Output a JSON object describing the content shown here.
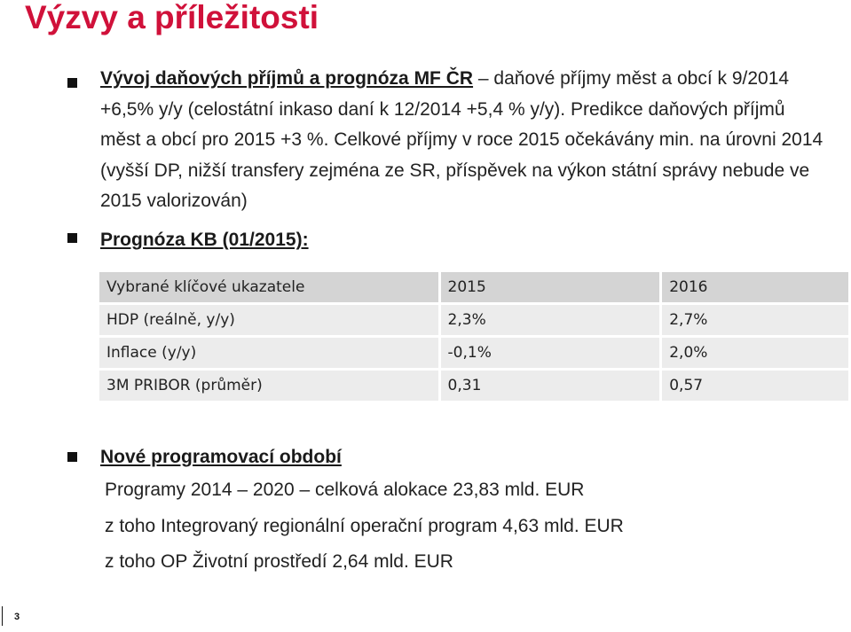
{
  "title": "Výzvy a příležitosti",
  "bullet1": {
    "heading": "Vývoj daňových příjmů a prognóza MF ČR",
    "text": " – daňové příjmy měst a obcí k 9/2014 +6,5% y/y (celostátní inkaso daní k 12/2014 +5,4 % y/y). Predikce daňových příjmů  měst a obcí pro 2015 +3 %. Celkové příjmy v roce 2015 očekávány min. na úrovni 2014 (vyšší DP, nižší transfery zejména ze SR, příspěvek na výkon státní správy nebude ve 2015 valorizován)"
  },
  "bullet2": {
    "heading": "Prognóza KB (01/2015):"
  },
  "table": {
    "header": [
      "Vybrané klíčové ukazatele",
      "2015",
      "2016"
    ],
    "rows": [
      [
        "HDP (reálně, y/y)",
        "2,3%",
        "2,7%"
      ],
      [
        "Inflace (y/y)",
        "-0,1%",
        "2,0%"
      ],
      [
        "3M PRIBOR (průměr)",
        "0,31",
        "0,57"
      ]
    ]
  },
  "bullet3": {
    "heading": "Nové programovací období",
    "lines": [
      "Programy 2014 – 2020 – celková alokace 23,83 mld. EUR",
      "z toho Integrovaný regionální operační program 4,63 mld. EUR",
      "z toho OP Životní prostředí 2,64 mld. EUR"
    ]
  },
  "slide_number": "3",
  "colors": {
    "title": "#d0113a",
    "table_header": "#d4d4d4",
    "table_row": "#ececec"
  }
}
